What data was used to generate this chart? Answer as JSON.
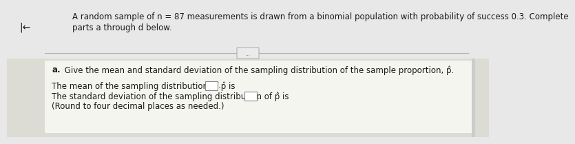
{
  "bg_top": "#e8e8e8",
  "bg_bottom": "#d8d8d0",
  "panel_color": "#f0f0ec",
  "white": "#ffffff",
  "header_line1": "A random sample of n = 87 measurements is drawn from a binomial population with probability of success 0.3. Complete",
  "header_line2": "parts a through d below.",
  "divider_button_text": "...",
  "part_a_label": "a.",
  "part_a_text": " Give the mean and standard deviation of the sampling distribution of the sample proportion, p̂.",
  "line1_text": "The mean of the sampling distribution of p̂ is",
  "line2_text": "The standard deviation of the sampling distribution of p̂ is",
  "line3_text": "(Round to four decimal places as needed.)",
  "arrow_symbol": "|←",
  "text_color": "#1a1a1a",
  "line_color": "#b0b0b0",
  "box_edge_color": "#888888",
  "font_size": 8.5,
  "right_bar_color": "#cccccc"
}
